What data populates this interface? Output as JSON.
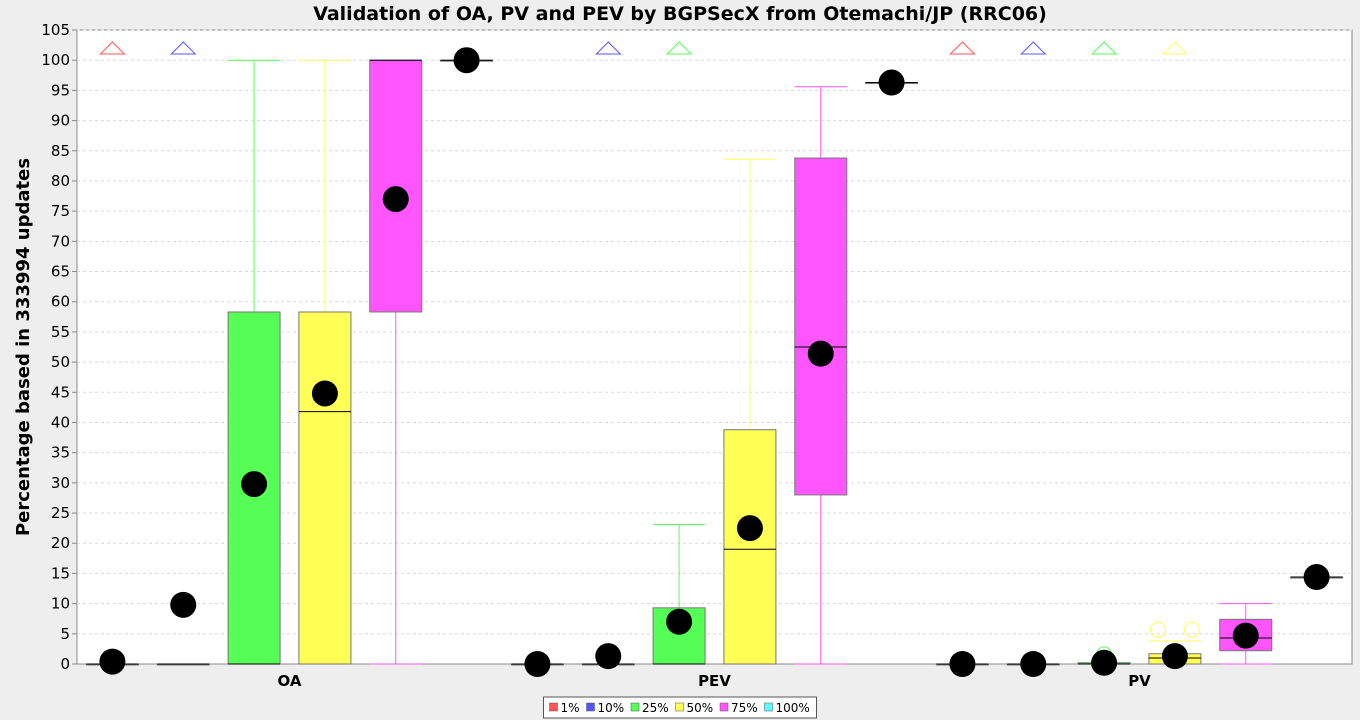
{
  "chart_data": {
    "type": "boxplot",
    "title": "Validation of OA, PV and PEV by BGPSecX from Otemachi/JP (RRC06)",
    "xlabel": "",
    "ylabel": "Percentage based in 333994 updates",
    "ylim": [
      0,
      105
    ],
    "yticks": [
      0,
      5,
      10,
      15,
      20,
      25,
      30,
      35,
      40,
      45,
      50,
      55,
      60,
      65,
      70,
      75,
      80,
      85,
      90,
      95,
      100,
      105
    ],
    "grid": true,
    "legend_position": "bottom",
    "categories": [
      "OA",
      "PEV",
      "PV"
    ],
    "colors": {
      "1%": "#ff5555",
      "10%": "#5555ff",
      "25%": "#55ff55",
      "50%": "#ffff55",
      "75%": "#ff55ff",
      "100%": "#55ffff"
    },
    "series": [
      {
        "name": "1%",
        "boxes": [
          {
            "q1": 0,
            "median": 0,
            "q3": 0,
            "mean": 0.4,
            "whisker_low": 0,
            "whisker_high": 0,
            "outliers": [],
            "far_outlier_above": true
          },
          {
            "q1": 0,
            "median": 0,
            "q3": 0,
            "mean": 0,
            "whisker_low": 0,
            "whisker_high": 0,
            "outliers": [],
            "far_outlier_above": false
          },
          {
            "q1": 0,
            "median": 0,
            "q3": 0,
            "mean": 0,
            "whisker_low": 0,
            "whisker_high": 0,
            "outliers": [],
            "far_outlier_above": true
          }
        ]
      },
      {
        "name": "10%",
        "boxes": [
          {
            "q1": 0,
            "median": 0,
            "q3": 0,
            "mean": 9.8,
            "whisker_low": 0,
            "whisker_high": 0,
            "outliers": [],
            "far_outlier_above": true
          },
          {
            "q1": 0,
            "median": 0,
            "q3": 0,
            "mean": 1.3,
            "whisker_low": 0,
            "whisker_high": 0,
            "outliers": [],
            "far_outlier_above": true
          },
          {
            "q1": 0,
            "median": 0,
            "q3": 0,
            "mean": 0,
            "whisker_low": 0,
            "whisker_high": 0,
            "outliers": [],
            "far_outlier_above": true
          }
        ]
      },
      {
        "name": "25%",
        "boxes": [
          {
            "q1": 0,
            "median": 0,
            "q3": 58.3,
            "mean": 29.8,
            "whisker_low": 0,
            "whisker_high": 100,
            "outliers": [],
            "far_outlier_above": false
          },
          {
            "q1": 0,
            "median": 0,
            "q3": 9.3,
            "mean": 7.0,
            "whisker_low": 0,
            "whisker_high": 23.1,
            "outliers": [],
            "far_outlier_above": true
          },
          {
            "q1": 0,
            "median": 0,
            "q3": 0.2,
            "mean": 0.2,
            "whisker_low": 0,
            "whisker_high": 0.2,
            "outliers": [
              1.6
            ],
            "far_outlier_above": true
          }
        ]
      },
      {
        "name": "50%",
        "boxes": [
          {
            "q1": 0,
            "median": 41.8,
            "q3": 58.3,
            "mean": 44.8,
            "whisker_low": 0,
            "whisker_high": 100,
            "outliers": [],
            "far_outlier_above": false
          },
          {
            "q1": 0,
            "median": 19.0,
            "q3": 38.8,
            "mean": 22.5,
            "whisker_low": 0,
            "whisker_high": 83.6,
            "outliers": [],
            "far_outlier_above": false
          },
          {
            "q1": 0,
            "median": 1.0,
            "q3": 1.7,
            "mean": 1.3,
            "whisker_low": 0,
            "whisker_high": 3.8,
            "outliers": [
              5.7,
              5.7
            ],
            "far_outlier_above": true
          }
        ]
      },
      {
        "name": "75%",
        "boxes": [
          {
            "q1": 58.3,
            "median": 100,
            "q3": 100,
            "mean": 77.0,
            "whisker_low": 0,
            "whisker_high": 100,
            "outliers": [],
            "far_outlier_above": false
          },
          {
            "q1": 28.0,
            "median": 52.5,
            "q3": 83.8,
            "mean": 51.4,
            "whisker_low": 0,
            "whisker_high": 95.6,
            "outliers": [],
            "far_outlier_above": false
          },
          {
            "q1": 2.2,
            "median": 4.3,
            "q3": 7.4,
            "mean": 4.7,
            "whisker_low": 0,
            "whisker_high": 10.0,
            "outliers": [],
            "far_outlier_above": false
          }
        ]
      },
      {
        "name": "100%",
        "boxes": [
          {
            "q1": 100,
            "median": 100,
            "q3": 100,
            "mean": 100,
            "whisker_low": 100,
            "whisker_high": 100,
            "outliers": [],
            "far_outlier_above": false
          },
          {
            "q1": 96.3,
            "median": 96.3,
            "q3": 96.3,
            "mean": 96.3,
            "whisker_low": 96.3,
            "whisker_high": 96.3,
            "outliers": [],
            "far_outlier_above": false
          },
          {
            "q1": 14.4,
            "median": 14.4,
            "q3": 14.4,
            "mean": 14.4,
            "whisker_low": 14.4,
            "whisker_high": 14.4,
            "outliers": [],
            "far_outlier_above": false
          }
        ]
      }
    ]
  }
}
